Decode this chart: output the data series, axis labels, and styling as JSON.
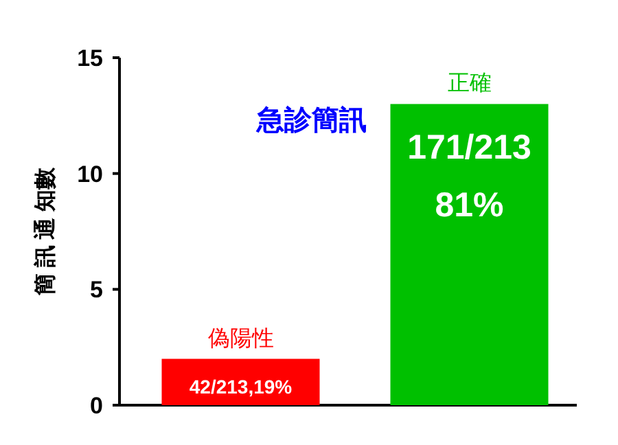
{
  "chart_data": {
    "type": "bar",
    "ylabel": "簡 訊 通 知數",
    "categories": [
      "偽陽性",
      "正確"
    ],
    "values": [
      2,
      13
    ],
    "colors": [
      "#ff0000",
      "#00c000"
    ],
    "annotations": [
      "急診簡訊",
      {
        "text": "42/213,19%",
        "x": "偽陽性",
        "y": 2
      },
      {
        "text": "171/213 81%",
        "x": "正確",
        "y": 13
      }
    ],
    "ylim": [
      0,
      15
    ],
    "yticks": [
      0,
      5,
      10,
      15
    ]
  }
}
